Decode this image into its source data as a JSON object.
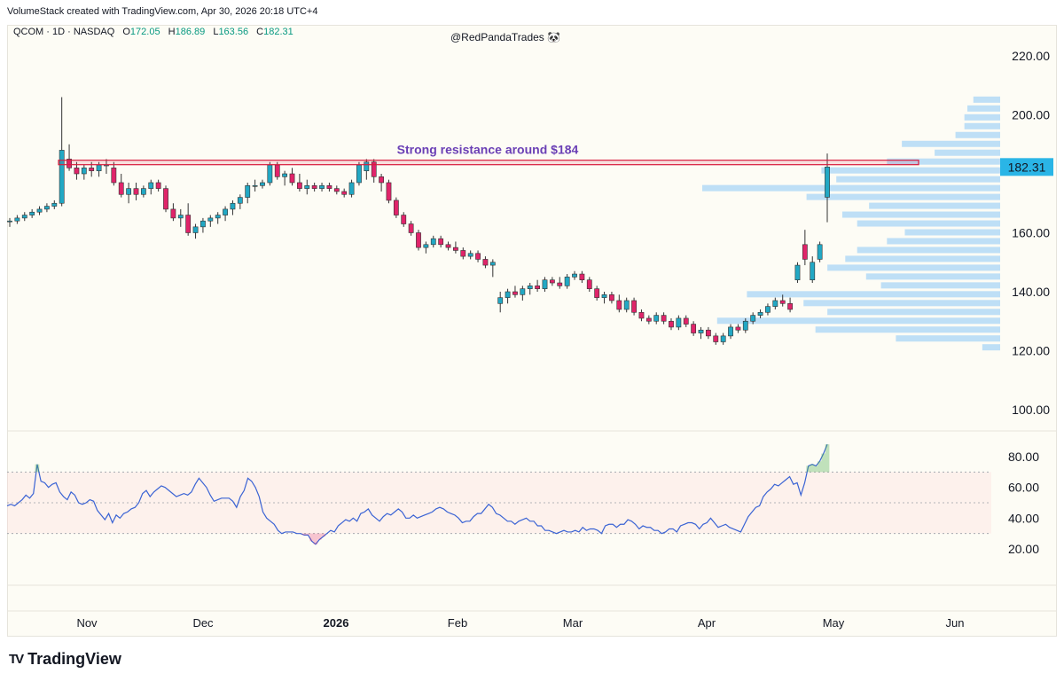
{
  "header": {
    "credit": "VolumeStack created with TradingView.com, Apr 30, 2026 20:18 UTC+4"
  },
  "legend": {
    "symbol": "QCOM · 1D · NASDAQ",
    "o_label": "O",
    "o_value": "172.05",
    "h_label": "H",
    "h_value": "186.89",
    "l_label": "L",
    "l_value": "163.56",
    "c_label": "C",
    "c_value": "182.31"
  },
  "watermark": "@RedPandaTrades 🐼",
  "annotation": "Strong resistance around $184",
  "price_label": "182.31",
  "footer": {
    "logo_text": "TradingView",
    "logo_mark": "TV"
  },
  "colors": {
    "up": "#22a8c4",
    "down": "#e0246a",
    "rsi_line": "#3a63d4",
    "resistance": "#d81b3c",
    "annotation_text": "#6a3fb5",
    "volume_profile": "#b7dcf6",
    "price_tag": "#2ab5e6"
  },
  "chart_data": {
    "type": "candlestick",
    "symbol": "QCOM",
    "interval": "1D",
    "exchange": "NASDAQ",
    "y_ticks": [
      100,
      120,
      140,
      160,
      180,
      200,
      220
    ],
    "y_tick_labels": [
      "100.00",
      "120.00",
      "140.00",
      "160.00",
      "",
      "200.00",
      "220.00"
    ],
    "x_ticks": [
      "Nov",
      "Dec",
      "2026",
      "Feb",
      "Mar",
      "Apr",
      "May",
      "Jun"
    ],
    "resistance_level": 184,
    "last_close": 182.31,
    "candles": [
      [
        164,
        165,
        162,
        164
      ],
      [
        164,
        166,
        163,
        165
      ],
      [
        165,
        167,
        164,
        166
      ],
      [
        166,
        168,
        165,
        167
      ],
      [
        167,
        169,
        166,
        168
      ],
      [
        168,
        170,
        167,
        169
      ],
      [
        169,
        171,
        168,
        170
      ],
      [
        170,
        206,
        169,
        188
      ],
      [
        185,
        190,
        181,
        182
      ],
      [
        182,
        184,
        178,
        180
      ],
      [
        180,
        183,
        178,
        182
      ],
      [
        182,
        184,
        179,
        181
      ],
      [
        181,
        184,
        179,
        183
      ],
      [
        183,
        185,
        180,
        183
      ],
      [
        182,
        184,
        176,
        177
      ],
      [
        177,
        180,
        172,
        173
      ],
      [
        173,
        177,
        170,
        175
      ],
      [
        175,
        177,
        171,
        173
      ],
      [
        173,
        176,
        172,
        175
      ],
      [
        175,
        178,
        173,
        177
      ],
      [
        177,
        178,
        174,
        175
      ],
      [
        175,
        176,
        167,
        168
      ],
      [
        168,
        170,
        164,
        165
      ],
      [
        165,
        168,
        162,
        166
      ],
      [
        166,
        170,
        159,
        160
      ],
      [
        160,
        163,
        158,
        162
      ],
      [
        162,
        165,
        160,
        164
      ],
      [
        164,
        166,
        162,
        165
      ],
      [
        165,
        167,
        163,
        166
      ],
      [
        166,
        169,
        164,
        168
      ],
      [
        168,
        171,
        166,
        170
      ],
      [
        170,
        173,
        168,
        172
      ],
      [
        172,
        177,
        170,
        176
      ],
      [
        176,
        178,
        174,
        176
      ],
      [
        176,
        178,
        175,
        177
      ],
      [
        177,
        184,
        176,
        183
      ],
      [
        183,
        184,
        178,
        179
      ],
      [
        179,
        181,
        176,
        180
      ],
      [
        180,
        182,
        176,
        177
      ],
      [
        177,
        180,
        174,
        175
      ],
      [
        175,
        178,
        173,
        176
      ],
      [
        176,
        177,
        174,
        175
      ],
      [
        175,
        177,
        174,
        176
      ],
      [
        176,
        177,
        174,
        175
      ],
      [
        175,
        176,
        173,
        174
      ],
      [
        174,
        175,
        172,
        173
      ],
      [
        173,
        178,
        172,
        177
      ],
      [
        177,
        184,
        176,
        183
      ],
      [
        181,
        185,
        178,
        184
      ],
      [
        184,
        185,
        177,
        179
      ],
      [
        179,
        180,
        174,
        177
      ],
      [
        177,
        178,
        170,
        171
      ],
      [
        171,
        172,
        165,
        166
      ],
      [
        166,
        167,
        162,
        163
      ],
      [
        163,
        164,
        159,
        160
      ],
      [
        160,
        161,
        154,
        155
      ],
      [
        155,
        157,
        153,
        156
      ],
      [
        156,
        159,
        155,
        158
      ],
      [
        158,
        159,
        155,
        156
      ],
      [
        156,
        157,
        154,
        155
      ],
      [
        155,
        157,
        153,
        154
      ],
      [
        154,
        155,
        151,
        152
      ],
      [
        152,
        154,
        151,
        153
      ],
      [
        153,
        154,
        150,
        151
      ],
      [
        151,
        152,
        148,
        149
      ],
      [
        149,
        151,
        145,
        150
      ],
      [
        136,
        140,
        133,
        138
      ],
      [
        138,
        141,
        136,
        140
      ],
      [
        140,
        142,
        138,
        139
      ],
      [
        139,
        142,
        137,
        141
      ],
      [
        141,
        143,
        139,
        142
      ],
      [
        142,
        144,
        140,
        141
      ],
      [
        141,
        145,
        140,
        144
      ],
      [
        144,
        145,
        142,
        143
      ],
      [
        143,
        145,
        141,
        142
      ],
      [
        142,
        146,
        141,
        145
      ],
      [
        145,
        147,
        144,
        146
      ],
      [
        146,
        147,
        143,
        144
      ],
      [
        144,
        145,
        140,
        141
      ],
      [
        141,
        142,
        137,
        138
      ],
      [
        138,
        140,
        136,
        139
      ],
      [
        139,
        140,
        136,
        137
      ],
      [
        137,
        139,
        133,
        134
      ],
      [
        134,
        138,
        133,
        137
      ],
      [
        137,
        138,
        132,
        133
      ],
      [
        133,
        134,
        130,
        131
      ],
      [
        131,
        132,
        129,
        130
      ],
      [
        130,
        133,
        129,
        132
      ],
      [
        132,
        133,
        129,
        130
      ],
      [
        130,
        131,
        127,
        128
      ],
      [
        128,
        132,
        127,
        131
      ],
      [
        131,
        132,
        128,
        129
      ],
      [
        129,
        130,
        125,
        126
      ],
      [
        126,
        128,
        124,
        127
      ],
      [
        127,
        128,
        124,
        125
      ],
      [
        125,
        126,
        122,
        123
      ],
      [
        123,
        126,
        122,
        125
      ],
      [
        125,
        129,
        124,
        128
      ],
      [
        128,
        129,
        126,
        127
      ],
      [
        127,
        131,
        126,
        130
      ],
      [
        130,
        133,
        129,
        132
      ],
      [
        132,
        134,
        131,
        133
      ],
      [
        133,
        136,
        132,
        135
      ],
      [
        135,
        138,
        134,
        137
      ],
      [
        137,
        139,
        135,
        136
      ],
      [
        136,
        138,
        133,
        134
      ],
      [
        144,
        150,
        143,
        149
      ],
      [
        156,
        161,
        149,
        151
      ],
      [
        144,
        152,
        143,
        150
      ],
      [
        151,
        157,
        150,
        156
      ],
      [
        172.05,
        186.89,
        163.56,
        182.31
      ]
    ],
    "volume_profile": [
      {
        "price": 205,
        "relative_volume": 0.09
      },
      {
        "price": 202,
        "relative_volume": 0.11
      },
      {
        "price": 199,
        "relative_volume": 0.12
      },
      {
        "price": 196,
        "relative_volume": 0.12
      },
      {
        "price": 193,
        "relative_volume": 0.15
      },
      {
        "price": 190,
        "relative_volume": 0.33
      },
      {
        "price": 187,
        "relative_volume": 0.22
      },
      {
        "price": 184,
        "relative_volume": 0.38
      },
      {
        "price": 181,
        "relative_volume": 0.6
      },
      {
        "price": 178,
        "relative_volume": 0.55
      },
      {
        "price": 175,
        "relative_volume": 1.0
      },
      {
        "price": 172,
        "relative_volume": 0.65
      },
      {
        "price": 169,
        "relative_volume": 0.44
      },
      {
        "price": 166,
        "relative_volume": 0.53
      },
      {
        "price": 163,
        "relative_volume": 0.48
      },
      {
        "price": 160,
        "relative_volume": 0.32
      },
      {
        "price": 157,
        "relative_volume": 0.38
      },
      {
        "price": 154,
        "relative_volume": 0.48
      },
      {
        "price": 151,
        "relative_volume": 0.52
      },
      {
        "price": 148,
        "relative_volume": 0.58
      },
      {
        "price": 145,
        "relative_volume": 0.45
      },
      {
        "price": 142,
        "relative_volume": 0.4
      },
      {
        "price": 139,
        "relative_volume": 0.85
      },
      {
        "price": 136,
        "relative_volume": 0.66
      },
      {
        "price": 133,
        "relative_volume": 0.58
      },
      {
        "price": 130,
        "relative_volume": 0.95
      },
      {
        "price": 127,
        "relative_volume": 0.62
      },
      {
        "price": 124,
        "relative_volume": 0.35
      },
      {
        "price": 121,
        "relative_volume": 0.06
      }
    ],
    "rsi": {
      "y_ticks": [
        20,
        40,
        60,
        80
      ],
      "y_tick_labels": [
        "20.00",
        "40.00",
        "60.00",
        "80.00"
      ],
      "overbought": 70,
      "middle": 50,
      "oversold": 30,
      "values": [
        48,
        49,
        48,
        50,
        52,
        55,
        53,
        56,
        75,
        64,
        63,
        60,
        62,
        63,
        57,
        54,
        52,
        57,
        55,
        50,
        49,
        50,
        52,
        51,
        45,
        42,
        39,
        43,
        37,
        42,
        40,
        43,
        44,
        46,
        47,
        50,
        56,
        58,
        54,
        57,
        59,
        61,
        60,
        58,
        56,
        54,
        55,
        56,
        55,
        57,
        62,
        66,
        63,
        60,
        55,
        51,
        52,
        53,
        53,
        53,
        51,
        47,
        54,
        58,
        66,
        64,
        60,
        54,
        44,
        40,
        38,
        36,
        32,
        30,
        31,
        31,
        31,
        30,
        30,
        29,
        29,
        25,
        23,
        26,
        28,
        30,
        32,
        31,
        35,
        37,
        39,
        38,
        40,
        38,
        43,
        44,
        46,
        42,
        40,
        38,
        41,
        43,
        42,
        44,
        46,
        44,
        40,
        40,
        42,
        40,
        41,
        42,
        43,
        44,
        46,
        47,
        46,
        44,
        43,
        42,
        40,
        37,
        38,
        38,
        41,
        43,
        43,
        46,
        49,
        47,
        43,
        42,
        40,
        38,
        38,
        36,
        38,
        39,
        40,
        38,
        38,
        35,
        35,
        32,
        32,
        31,
        30,
        31,
        32,
        31,
        31,
        32,
        31,
        34,
        32,
        33,
        33,
        32,
        30,
        35,
        36,
        36,
        34,
        36,
        36,
        39,
        38,
        36,
        33,
        35,
        34,
        34,
        32,
        32,
        30,
        31,
        33,
        33,
        31,
        35,
        36,
        37,
        37,
        36,
        33,
        36,
        37,
        40,
        37,
        34,
        35,
        36,
        34,
        33,
        32,
        31,
        36,
        41,
        44,
        47,
        48,
        54,
        57,
        59,
        62,
        61,
        63,
        65,
        67,
        62,
        63,
        55,
        63,
        74,
        75,
        74,
        77,
        82,
        88
      ]
    }
  }
}
